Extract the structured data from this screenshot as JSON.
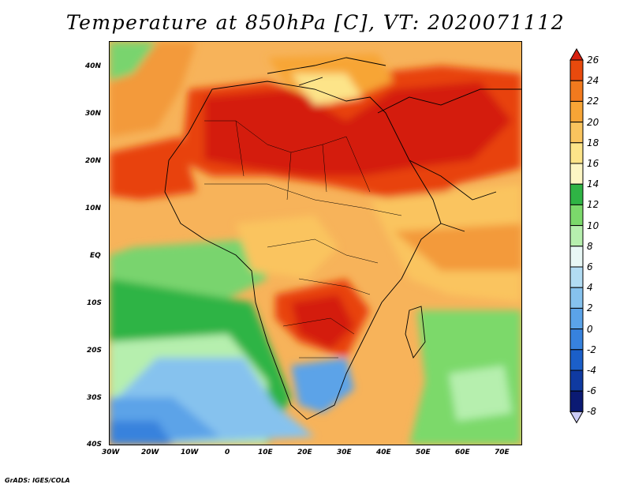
{
  "title": "Temperature at 850hPa [C], VT: 2020071112",
  "credit": "GrADS: IGES/COLA",
  "map": {
    "lon_range": [
      -30,
      75
    ],
    "lat_range": [
      -40,
      45
    ],
    "y_tick_labels": [
      "40N",
      "30N",
      "20N",
      "10N",
      "EQ",
      "10S",
      "20S",
      "30S",
      "40S"
    ],
    "x_tick_labels": [
      "30W",
      "20W",
      "10W",
      "0",
      "10E",
      "20E",
      "30E",
      "40E",
      "50E",
      "60E",
      "70E"
    ]
  },
  "colorbar": {
    "labels": [
      "26",
      "24",
      "22",
      "20",
      "18",
      "16",
      "14",
      "12",
      "10",
      "8",
      "6",
      "4",
      "2",
      "0",
      "-2",
      "-4",
      "-6",
      "-8"
    ],
    "colors": [
      "#d7200f",
      "#e84a0d",
      "#f27a1e",
      "#f7a536",
      "#fac45e",
      "#fde489",
      "#fdf6c4",
      "#2fb445",
      "#7bd96b",
      "#b6efae",
      "#e8f7f5",
      "#b2dcf3",
      "#86c2ee",
      "#5ba3e8",
      "#3782dd",
      "#1b5fc9",
      "#0f3aa1",
      "#0b1a73",
      "#ccccf6"
    ]
  }
}
